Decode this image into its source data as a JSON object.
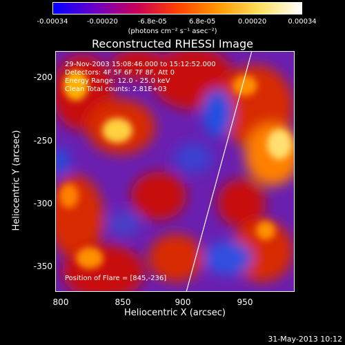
{
  "colorbar": {
    "ticks": [
      "-0.00034",
      "-0.00020",
      "-6.8e-05",
      "6.8e-05",
      "0.00020",
      "0.00034"
    ],
    "units": "(photons cm⁻² s⁻¹ asec⁻²)",
    "colors": [
      "#0000ff",
      "#6a00c8",
      "#c8005a",
      "#ff4000",
      "#ff9a00",
      "#ffe060",
      "#ffffff"
    ]
  },
  "title": "Reconstructed RHESSI Image",
  "info": {
    "time": "29-Nov-2003 15:08:46.000 to 15:12:52.000",
    "detectors": "Detectors: 4F 5F 6F 7F 8F, Att 0",
    "energy": "Energy Range: 12.0 - 25.0 keV",
    "clean": "Clean     Total counts: 2.81E+03",
    "position": "Position of Flare = [845,-236]"
  },
  "axes": {
    "xlabel": "Heliocentric X (arcsec)",
    "ylabel": "Heliocentric Y (arcsec)",
    "xticks": [
      "800",
      "850",
      "900",
      "950"
    ],
    "yticks": [
      "-200",
      "-250",
      "-300",
      "-350"
    ],
    "xlim": [
      798,
      987
    ],
    "ylim": [
      -371,
      -180
    ]
  },
  "limb_color": "#ffffff",
  "footer_date": "31-May-2013 10:12"
}
